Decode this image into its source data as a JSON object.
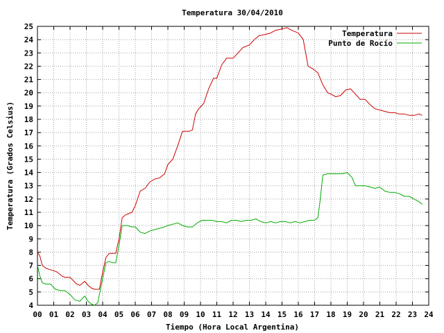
{
  "chart_data": {
    "type": "line",
    "title": "Temperatura 30/04/2010",
    "xlabel": "Tiempo (Hora Local Argentina)",
    "ylabel": "Temperatura (Grados Celsius)",
    "xlim": [
      0,
      24
    ],
    "ylim": [
      4,
      25
    ],
    "x_ticks": [
      "00",
      "01",
      "02",
      "03",
      "04",
      "05",
      "06",
      "07",
      "08",
      "09",
      "10",
      "11",
      "12",
      "13",
      "14",
      "15",
      "16",
      "17",
      "18",
      "19",
      "20",
      "21",
      "22",
      "23",
      "24"
    ],
    "y_ticks": [
      "4",
      "5",
      "6",
      "7",
      "8",
      "9",
      "10",
      "11",
      "12",
      "13",
      "14",
      "15",
      "16",
      "17",
      "18",
      "19",
      "20",
      "21",
      "22",
      "23",
      "24",
      "25"
    ],
    "grid": true,
    "legend_position": "top-right",
    "series": [
      {
        "name": "Temperatura",
        "color": "#cc0000",
        "x": [
          0.0,
          0.15,
          0.3,
          0.5,
          0.7,
          1.0,
          1.2,
          1.5,
          1.7,
          2.0,
          2.4,
          2.6,
          2.9,
          3.1,
          3.3,
          3.5,
          3.8,
          4.0,
          4.2,
          4.4,
          4.6,
          4.8,
          5.0,
          5.2,
          5.4,
          5.6,
          5.8,
          6.0,
          6.3,
          6.6,
          6.9,
          7.2,
          7.5,
          7.8,
          8.0,
          8.3,
          8.6,
          8.9,
          9.1,
          9.3,
          9.5,
          9.7,
          9.9,
          10.2,
          10.5,
          10.8,
          11.0,
          11.3,
          11.6,
          12.0,
          12.3,
          12.6,
          13.0,
          13.3,
          13.6,
          14.0,
          14.3,
          14.6,
          15.0,
          15.3,
          15.6,
          16.0,
          16.3,
          16.6,
          16.9,
          17.2,
          17.5,
          17.8,
          18.0,
          18.3,
          18.6,
          18.9,
          19.2,
          19.5,
          19.8,
          20.1,
          20.4,
          20.7,
          21.0,
          21.3,
          21.6,
          21.9,
          22.2,
          22.5,
          22.8,
          23.1,
          23.4,
          23.6
        ],
        "y": [
          8.0,
          7.7,
          7.0,
          6.8,
          6.7,
          6.6,
          6.5,
          6.2,
          6.1,
          6.1,
          5.6,
          5.5,
          5.8,
          5.5,
          5.3,
          5.2,
          5.2,
          6.5,
          7.6,
          7.9,
          7.9,
          7.9,
          9.0,
          10.6,
          10.8,
          10.9,
          11.0,
          11.5,
          12.6,
          12.8,
          13.3,
          13.5,
          13.6,
          13.9,
          14.6,
          15.0,
          16.0,
          17.1,
          17.1,
          17.1,
          17.2,
          18.4,
          18.8,
          19.2,
          20.3,
          21.1,
          21.1,
          22.1,
          22.6,
          22.6,
          23.0,
          23.4,
          23.6,
          24.0,
          24.3,
          24.4,
          24.5,
          24.7,
          24.8,
          24.9,
          24.7,
          24.5,
          24.0,
          22.0,
          21.8,
          21.5,
          20.6,
          20.0,
          19.9,
          19.7,
          19.8,
          20.2,
          20.3,
          19.9,
          19.5,
          19.5,
          19.1,
          18.8,
          18.7,
          18.6,
          18.5,
          18.5,
          18.4,
          18.4,
          18.3,
          18.3,
          18.4,
          18.3
        ]
      },
      {
        "name": "Punto de Rocío",
        "color": "#00aa00",
        "x": [
          0.0,
          0.15,
          0.3,
          0.5,
          0.8,
          1.1,
          1.4,
          1.7,
          2.0,
          2.3,
          2.6,
          2.9,
          3.1,
          3.3,
          3.5,
          3.7,
          4.0,
          4.2,
          4.4,
          4.6,
          4.8,
          5.0,
          5.2,
          5.5,
          5.8,
          6.0,
          6.3,
          6.6,
          6.9,
          7.2,
          7.5,
          7.8,
          8.0,
          8.3,
          8.6,
          8.9,
          9.2,
          9.5,
          9.8,
          10.1,
          10.4,
          10.7,
          11.0,
          11.3,
          11.6,
          11.9,
          12.2,
          12.5,
          12.8,
          13.1,
          13.4,
          13.7,
          14.0,
          14.3,
          14.6,
          14.9,
          15.2,
          15.5,
          15.8,
          16.1,
          16.4,
          16.7,
          17.0,
          17.2,
          17.35,
          17.5,
          17.8,
          18.1,
          18.4,
          18.7,
          19.0,
          19.3,
          19.5,
          19.8,
          20.1,
          20.4,
          20.7,
          21.0,
          21.3,
          21.6,
          21.9,
          22.2,
          22.5,
          22.8,
          23.1,
          23.4,
          23.6
        ],
        "y": [
          7.0,
          6.2,
          5.7,
          5.6,
          5.6,
          5.2,
          5.1,
          5.1,
          4.8,
          4.4,
          4.3,
          4.7,
          4.3,
          4.1,
          4.0,
          4.2,
          6.0,
          7.2,
          7.3,
          7.2,
          7.2,
          8.5,
          10.0,
          10.0,
          9.9,
          9.9,
          9.5,
          9.4,
          9.6,
          9.7,
          9.8,
          9.9,
          10.0,
          10.1,
          10.2,
          10.0,
          9.9,
          9.9,
          10.2,
          10.4,
          10.4,
          10.4,
          10.3,
          10.3,
          10.2,
          10.4,
          10.4,
          10.3,
          10.4,
          10.4,
          10.5,
          10.3,
          10.2,
          10.3,
          10.2,
          10.3,
          10.3,
          10.2,
          10.3,
          10.2,
          10.3,
          10.4,
          10.4,
          10.6,
          12.0,
          13.8,
          13.9,
          13.9,
          13.9,
          13.9,
          14.0,
          13.6,
          13.0,
          13.0,
          13.0,
          12.9,
          12.8,
          12.9,
          12.6,
          12.5,
          12.5,
          12.4,
          12.2,
          12.2,
          12.0,
          11.8,
          11.6
        ]
      }
    ]
  }
}
